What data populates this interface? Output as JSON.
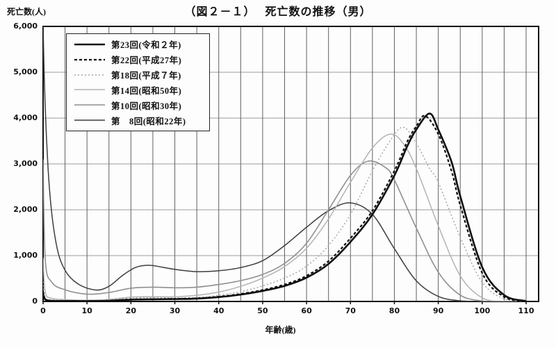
{
  "title": "（図２－１）　 死亡数の推移（男）",
  "y_axis": {
    "unit_label": "死亡数(人)",
    "tick_labels": [
      "6,000",
      "5,000",
      "4,000",
      "3,000",
      "2,000",
      "1,000",
      "0"
    ]
  },
  "x_axis": {
    "label": "年齢(歳)",
    "tick_labels": [
      "0",
      "10",
      "20",
      "30",
      "40",
      "50",
      "60",
      "70",
      "80",
      "90",
      "100",
      "110"
    ]
  },
  "colors": {
    "background": "#fdfdfd",
    "frame": "#111111",
    "grid_vertical": "#606060",
    "grid_horizontal": "#9a9a9a"
  },
  "chart_data": {
    "type": "line",
    "title": "（図２－１）　死亡数の推移（男）",
    "xlabel": "年齢(歳)",
    "ylabel": "死亡数(人)",
    "xlim": [
      0,
      110
    ],
    "ylim": [
      0,
      6000
    ],
    "x_major_tick_step": 10,
    "x_grid_step": 5,
    "y_grid_step": 1000,
    "grid": true,
    "legend_position": "top-left",
    "series": [
      {
        "name": "第23回(令和２年)",
        "style": {
          "color": "#0d0d0d",
          "width": 2.6,
          "dash": ""
        },
        "x": [
          0,
          0.5,
          2,
          5,
          10,
          15,
          20,
          25,
          30,
          35,
          40,
          45,
          50,
          55,
          60,
          65,
          70,
          75,
          80,
          83,
          85,
          88,
          90,
          93,
          95,
          100,
          105,
          110
        ],
        "y": [
          170,
          40,
          15,
          10,
          8,
          15,
          40,
          47,
          52,
          62,
          95,
          150,
          230,
          340,
          520,
          820,
          1300,
          1900,
          2750,
          3400,
          3750,
          4100,
          3750,
          3050,
          2300,
          750,
          140,
          10
        ]
      },
      {
        "name": "第22回(平成27年)",
        "style": {
          "color": "#0d0d0d",
          "width": 2.2,
          "dash": "4 3"
        },
        "x": [
          0,
          0.5,
          2,
          5,
          10,
          15,
          20,
          25,
          30,
          35,
          40,
          45,
          50,
          55,
          60,
          65,
          70,
          75,
          80,
          83,
          85,
          87,
          90,
          93,
          95,
          100,
          105,
          110
        ],
        "y": [
          210,
          50,
          18,
          12,
          10,
          18,
          45,
          52,
          57,
          70,
          105,
          165,
          250,
          370,
          560,
          880,
          1380,
          1980,
          2850,
          3500,
          3820,
          4050,
          3650,
          2850,
          2100,
          620,
          100,
          5
        ]
      },
      {
        "name": "第18回(平成７年)",
        "style": {
          "color": "#a6a6a6",
          "width": 1.5,
          "dash": "2 3"
        },
        "x": [
          0,
          0.5,
          2,
          5,
          10,
          15,
          20,
          25,
          30,
          35,
          40,
          45,
          50,
          55,
          60,
          65,
          70,
          75,
          79,
          82,
          85,
          88,
          90,
          95,
          100,
          105,
          110
        ],
        "y": [
          430,
          90,
          35,
          22,
          16,
          32,
          78,
          82,
          76,
          88,
          135,
          215,
          340,
          510,
          770,
          1220,
          1900,
          2850,
          3500,
          3800,
          3450,
          2900,
          2600,
          1400,
          420,
          55,
          0
        ]
      },
      {
        "name": "第14回(昭和50年)",
        "style": {
          "color": "#b3b3b3",
          "width": 1.5,
          "dash": ""
        },
        "x": [
          0,
          0.5,
          2,
          5,
          10,
          15,
          20,
          25,
          30,
          35,
          40,
          45,
          50,
          55,
          60,
          65,
          70,
          75,
          79,
          82,
          85,
          90,
          95,
          100,
          105,
          110
        ],
        "y": [
          950,
          200,
          70,
          42,
          28,
          45,
          95,
          105,
          102,
          135,
          205,
          330,
          510,
          760,
          1160,
          1800,
          2600,
          3350,
          3650,
          3450,
          2900,
          1650,
          560,
          80,
          5,
          0
        ]
      },
      {
        "name": "第10回(昭和30年)",
        "style": {
          "color": "#8f8f8f",
          "width": 1.6,
          "dash": ""
        },
        "x": [
          0,
          0.5,
          2,
          5,
          10,
          15,
          20,
          25,
          30,
          35,
          40,
          45,
          50,
          55,
          60,
          65,
          70,
          74,
          78,
          80,
          85,
          90,
          95,
          100,
          105,
          110
        ],
        "y": [
          3100,
          900,
          420,
          255,
          160,
          195,
          290,
          312,
          298,
          312,
          370,
          455,
          590,
          830,
          1270,
          2000,
          2750,
          3060,
          2920,
          2650,
          1600,
          640,
          140,
          12,
          0,
          0
        ]
      },
      {
        "name": "第　8回(昭和22年)",
        "style": {
          "color": "#3d3d3d",
          "width": 1.5,
          "dash": ""
        },
        "x": [
          0,
          0.5,
          1.5,
          3,
          5,
          8,
          12,
          15,
          18,
          21,
          24,
          27,
          30,
          35,
          40,
          45,
          50,
          55,
          60,
          65,
          70,
          75,
          80,
          85,
          90,
          95,
          100,
          105,
          110
        ],
        "y": [
          6000,
          4200,
          2400,
          1250,
          680,
          380,
          250,
          330,
          560,
          740,
          790,
          750,
          700,
          650,
          670,
          740,
          890,
          1220,
          1620,
          1980,
          2150,
          1900,
          1150,
          450,
          110,
          15,
          0,
          0,
          0
        ]
      }
    ]
  }
}
